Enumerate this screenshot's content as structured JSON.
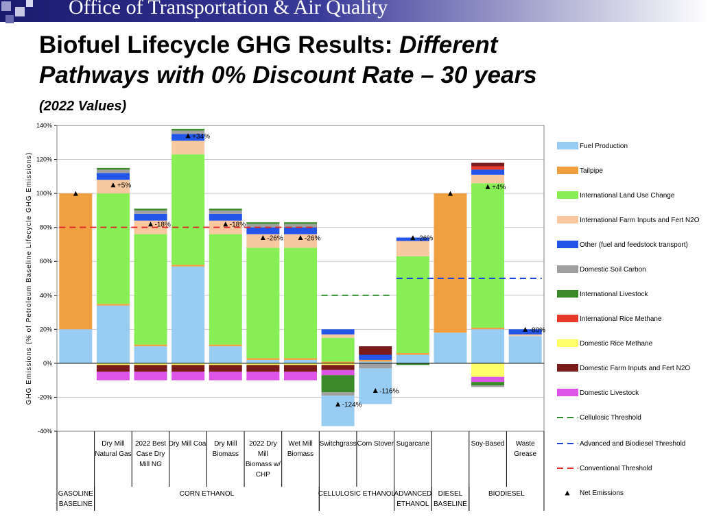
{
  "header": {
    "office": "Office of Transportation & Air Quality"
  },
  "title": {
    "part1": "Biofuel Lifecycle GHG Results: ",
    "part2": "Different",
    "line2": "Pathways with 0% Discount Rate – 30 years",
    "subtitle": "(2022 Values)"
  },
  "chart_data": {
    "type": "bar",
    "stacked": true,
    "ylabel": "GHG Emissions (% of Petroleum Baseline Lifecycle GHG Emissions)",
    "ylim": [
      -40,
      140
    ],
    "yticks": [
      -40,
      -20,
      0,
      20,
      40,
      60,
      80,
      100,
      120,
      140
    ],
    "ytick_labels": [
      "-40%",
      "-20%",
      "0%",
      "20%",
      "40%",
      "60%",
      "80%",
      "100%",
      "120%",
      "140%"
    ],
    "grid": true,
    "legend_position": "right",
    "categories": [
      {
        "name": "",
        "label_lines": []
      },
      {
        "name": "Dry Mill Natural Gas",
        "label_lines": [
          "Dry Mill",
          "Natural Gas"
        ]
      },
      {
        "name": "2022 Best Case Dry Mill NG",
        "label_lines": [
          "2022 Best",
          "Case Dry",
          "Mill NG"
        ]
      },
      {
        "name": "Dry Mill Coal",
        "label_lines": [
          "Dry Mill Coal"
        ]
      },
      {
        "name": "Dry Mill Biomass",
        "label_lines": [
          "Dry Mill",
          "Biomass"
        ]
      },
      {
        "name": "2022 Dry Mill Biomass w/ CHP",
        "label_lines": [
          "2022 Dry",
          "Mill",
          "Biomass w/",
          "CHP"
        ]
      },
      {
        "name": "Wet Mill Biomass",
        "label_lines": [
          "Wet Mill",
          "Biomass"
        ]
      },
      {
        "name": "Switchgrass",
        "label_lines": [
          "Switchgrass"
        ]
      },
      {
        "name": "Corn Stover",
        "label_lines": [
          "Corn Stover"
        ]
      },
      {
        "name": "Sugarcane",
        "label_lines": [
          "Sugarcane"
        ]
      },
      {
        "name": "",
        "label_lines": []
      },
      {
        "name": "Soy-Based",
        "label_lines": [
          "Soy-Based"
        ]
      },
      {
        "name": "Waste Grease",
        "label_lines": [
          "Waste",
          "Grease"
        ]
      }
    ],
    "groups": [
      {
        "lines": [
          "GASOLINE",
          "BASELINE"
        ],
        "span": [
          0,
          0
        ]
      },
      {
        "lines": [
          "CORN ETHANOL"
        ],
        "span": [
          1,
          6
        ]
      },
      {
        "lines": [
          "CELLULOSIC ETHANOL"
        ],
        "span": [
          7,
          8
        ]
      },
      {
        "lines": [
          "ADVANCED",
          "ETHANOL"
        ],
        "span": [
          9,
          9
        ]
      },
      {
        "lines": [
          "DIESEL",
          "BASELINE"
        ],
        "span": [
          10,
          10
        ]
      },
      {
        "lines": [
          "BIODIESEL"
        ],
        "span": [
          11,
          12
        ]
      }
    ],
    "series": [
      {
        "name": "Fuel Production",
        "color": "#99ccf2",
        "values": [
          20,
          34,
          10,
          57,
          10,
          2,
          2,
          0,
          1,
          5,
          18,
          20,
          16
        ]
      },
      {
        "name": "Tailpipe",
        "color": "#f0a040",
        "values": [
          80,
          1,
          1,
          1,
          1,
          1,
          1,
          1,
          1,
          1,
          82,
          1,
          0
        ]
      },
      {
        "name": "International Land Use Change",
        "color": "#88ee55",
        "values": [
          0,
          65,
          65,
          65,
          65,
          65,
          65,
          14,
          0,
          57,
          0,
          85,
          0
        ]
      },
      {
        "name": "International Farm Inputs and Fert N2O",
        "color": "#f8c8a0",
        "values": [
          0,
          8,
          8,
          8,
          8,
          8,
          8,
          2,
          0,
          9,
          0,
          5,
          1
        ]
      },
      {
        "name": "Other (fuel and feedstock transport)",
        "color": "#2255e8",
        "values": [
          0,
          4,
          4,
          4,
          4,
          4,
          4,
          3,
          3,
          2,
          0,
          3,
          3
        ]
      },
      {
        "name": "Domestic Soil Carbon",
        "color": "#a0a0a0",
        "values": [
          0,
          2,
          2,
          2,
          2,
          2,
          2,
          0,
          0,
          0,
          0,
          0,
          0
        ]
      },
      {
        "name": "International Livestock",
        "color": "#3a8a2a",
        "values": [
          0,
          1,
          1,
          1,
          1,
          1,
          1,
          0,
          0,
          0,
          0,
          0,
          0
        ]
      },
      {
        "name": "International Rice Methane",
        "color": "#e83a2a",
        "values": [
          0,
          0,
          0,
          0,
          0,
          0,
          0,
          0,
          0,
          0,
          0,
          2,
          0
        ]
      },
      {
        "name": "Domestic Rice Methane",
        "color": "#ffff66",
        "values": [
          0,
          -1,
          -1,
          -1,
          -1,
          -1,
          -1,
          -1,
          0,
          0,
          0,
          -8,
          0
        ]
      },
      {
        "name": "Domestic Farm Inputs and Fert N2O",
        "color": "#7a1a1a",
        "values": [
          0,
          -4,
          -4,
          -4,
          -4,
          -4,
          -4,
          -3,
          5,
          0,
          0,
          2,
          0
        ]
      },
      {
        "name": "Domestic Livestock",
        "color": "#dd55e8",
        "values": [
          0,
          -5,
          -5,
          -5,
          -5,
          -5,
          -5,
          -3,
          0,
          0,
          0,
          -3,
          0
        ]
      }
    ],
    "extra_negative": [
      {
        "category": 7,
        "segments": [
          {
            "series": "International Livestock",
            "value": -10
          },
          {
            "series": "Domestic Soil Carbon",
            "value": -2
          },
          {
            "series": "Fuel Production",
            "value": -18
          }
        ]
      },
      {
        "category": 8,
        "segments": [
          {
            "series": "Domestic Soil Carbon",
            "value": -3
          },
          {
            "series": "Fuel Production",
            "value": -21
          }
        ]
      },
      {
        "category": 9,
        "segments": [
          {
            "series": "International Livestock",
            "value": -1
          }
        ]
      },
      {
        "category": 11,
        "segments": [
          {
            "series": "International Livestock",
            "value": -2
          },
          {
            "series": "Domestic Soil Carbon",
            "value": -1
          }
        ]
      }
    ],
    "net_emissions": [
      {
        "category": 0,
        "value": 100,
        "label": ""
      },
      {
        "category": 1,
        "value": 105,
        "label": "+5%"
      },
      {
        "category": 2,
        "value": 82,
        "label": "-18%"
      },
      {
        "category": 3,
        "value": 134,
        "label": "+34%"
      },
      {
        "category": 4,
        "value": 82,
        "label": "-18%"
      },
      {
        "category": 5,
        "value": 74,
        "label": "-26%"
      },
      {
        "category": 6,
        "value": 74,
        "label": "-26%"
      },
      {
        "category": 7,
        "value": -24,
        "label": "-124%"
      },
      {
        "category": 8,
        "value": -16,
        "label": "-116%"
      },
      {
        "category": 9,
        "value": 74,
        "label": "-26%"
      },
      {
        "category": 10,
        "value": 100,
        "label": ""
      },
      {
        "category": 11,
        "value": 104,
        "label": "+4%"
      },
      {
        "category": 12,
        "value": 20,
        "label": "-80%"
      }
    ],
    "thresholds": [
      {
        "name": "Cellulosic Threshold",
        "color": "#2a8a2a",
        "value": 40,
        "from": 7,
        "to": 8
      },
      {
        "name": "Advanced and Biodiesel Threshold",
        "color": "#2244dd",
        "value": 50,
        "from": 9,
        "to": 12
      },
      {
        "name": "Conventional Threshold",
        "color": "#e02a2a",
        "value": 80,
        "from": 0,
        "to": 6
      }
    ],
    "net_legend": "Net Emissions"
  }
}
